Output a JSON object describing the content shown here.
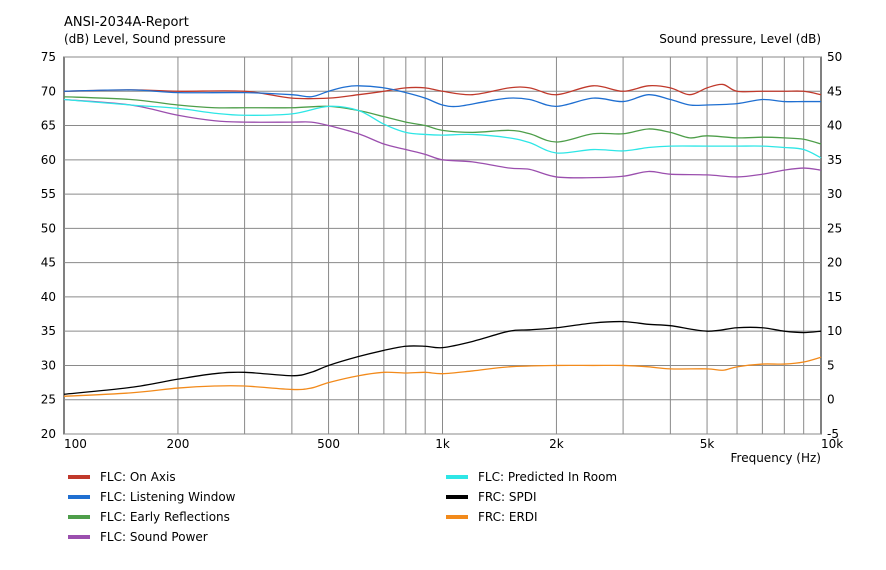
{
  "chart_data": {
    "type": "line",
    "title": "ANSI-2034A-Report",
    "left_axis_label": "(dB)  Level, Sound pressure",
    "right_axis_label": "Sound pressure, Level  (dB)",
    "xlabel": "Frequency  (Hz)",
    "x_scale": "log",
    "xlim": [
      100,
      10000
    ],
    "ylim_left": [
      20,
      75
    ],
    "ylim_right": [
      -5,
      50
    ],
    "grid": true,
    "x_tick_labels": [
      {
        "value": 100,
        "label": "100"
      },
      {
        "value": 200,
        "label": "200"
      },
      {
        "value": 500,
        "label": "500"
      },
      {
        "value": 1000,
        "label": "1k"
      },
      {
        "value": 2000,
        "label": "2k"
      },
      {
        "value": 5000,
        "label": "5k"
      },
      {
        "value": 10000,
        "label": "10k"
      }
    ],
    "y_left_ticks": [
      20,
      25,
      30,
      35,
      40,
      45,
      50,
      55,
      60,
      65,
      70,
      75
    ],
    "y_right_ticks": [
      -5,
      0,
      5,
      10,
      15,
      20,
      25,
      30,
      35,
      40,
      45,
      50
    ],
    "legend_position": "bottom",
    "series": [
      {
        "name": "FLC: On Axis",
        "color": "#c0392b",
        "axis": "left",
        "x": [
          100,
          150,
          200,
          300,
          400,
          500,
          600,
          700,
          800,
          900,
          1000,
          1200,
          1500,
          1700,
          2000,
          2500,
          3000,
          3500,
          4000,
          4500,
          5000,
          5500,
          6000,
          7000,
          8000,
          9000,
          10000
        ],
        "y": [
          70.0,
          70.2,
          70.0,
          70.0,
          69.0,
          69.0,
          69.5,
          70.0,
          70.5,
          70.5,
          70.0,
          69.5,
          70.5,
          70.5,
          69.5,
          70.8,
          70.0,
          70.8,
          70.5,
          69.5,
          70.5,
          71.0,
          70.0,
          70.0,
          70.0,
          70.0,
          69.5
        ]
      },
      {
        "name": "FLC: Listening Window",
        "color": "#1f6fd1",
        "axis": "left",
        "x": [
          100,
          150,
          200,
          300,
          400,
          450,
          500,
          550,
          600,
          700,
          800,
          900,
          1000,
          1100,
          1300,
          1500,
          1700,
          2000,
          2500,
          3000,
          3500,
          4000,
          4500,
          5000,
          6000,
          7000,
          8000,
          9000,
          10000
        ],
        "y": [
          70.0,
          70.2,
          69.8,
          69.8,
          69.5,
          69.2,
          70.0,
          70.6,
          70.8,
          70.5,
          69.8,
          69.0,
          68.0,
          67.8,
          68.5,
          69.0,
          68.8,
          67.8,
          69.0,
          68.5,
          69.5,
          68.8,
          68.0,
          68.0,
          68.2,
          68.8,
          68.5,
          68.5,
          68.5
        ]
      },
      {
        "name": "FLC: Early Reflections",
        "color": "#4e9e4a",
        "axis": "left",
        "x": [
          100,
          150,
          200,
          250,
          300,
          400,
          500,
          600,
          700,
          800,
          900,
          1000,
          1200,
          1500,
          1700,
          2000,
          2500,
          3000,
          3500,
          4000,
          4500,
          5000,
          6000,
          7000,
          8000,
          9000,
          10000
        ],
        "y": [
          69.2,
          68.8,
          68.0,
          67.6,
          67.6,
          67.6,
          67.8,
          67.2,
          66.3,
          65.5,
          65.0,
          64.3,
          64.0,
          64.3,
          63.8,
          62.6,
          63.8,
          63.8,
          64.5,
          64.0,
          63.2,
          63.5,
          63.2,
          63.3,
          63.2,
          63.0,
          62.3
        ]
      },
      {
        "name": "FLC: Sound Power",
        "color": "#9b4fae",
        "axis": "left",
        "x": [
          100,
          150,
          200,
          250,
          300,
          400,
          450,
          500,
          600,
          700,
          800,
          900,
          1000,
          1200,
          1500,
          1700,
          2000,
          2500,
          3000,
          3500,
          4000,
          5000,
          6000,
          7000,
          8000,
          9000,
          10000
        ],
        "y": [
          68.8,
          68.0,
          66.5,
          65.7,
          65.5,
          65.5,
          65.5,
          65.0,
          63.8,
          62.3,
          61.5,
          60.8,
          60.0,
          59.7,
          58.8,
          58.6,
          57.5,
          57.4,
          57.6,
          58.3,
          57.9,
          57.8,
          57.5,
          57.9,
          58.5,
          58.8,
          58.5
        ]
      },
      {
        "name": "FLC: Predicted In Room",
        "color": "#2ee6e6",
        "axis": "left",
        "x": [
          100,
          150,
          200,
          250,
          300,
          400,
          500,
          600,
          700,
          800,
          900,
          1000,
          1200,
          1500,
          1700,
          2000,
          2500,
          3000,
          3500,
          4000,
          5000,
          6000,
          7000,
          8000,
          9000,
          10000
        ],
        "y": [
          68.8,
          68.0,
          67.5,
          66.8,
          66.5,
          66.7,
          67.8,
          67.2,
          65.2,
          64.0,
          63.7,
          63.6,
          63.7,
          63.2,
          62.5,
          61.0,
          61.5,
          61.3,
          61.8,
          62.0,
          62.0,
          62.0,
          62.0,
          61.8,
          61.5,
          60.3
        ]
      },
      {
        "name": "FRC: SPDI",
        "color": "#000000",
        "axis": "right",
        "x": [
          100,
          150,
          200,
          250,
          300,
          400,
          450,
          500,
          600,
          700,
          800,
          900,
          1000,
          1200,
          1500,
          1700,
          2000,
          2500,
          3000,
          3500,
          4000,
          5000,
          6000,
          7000,
          8000,
          9000,
          10000
        ],
        "y": [
          0.8,
          1.8,
          3.0,
          3.8,
          4.0,
          3.5,
          4.0,
          5.0,
          6.3,
          7.2,
          7.8,
          7.8,
          7.6,
          8.5,
          10.0,
          10.2,
          10.5,
          11.2,
          11.4,
          11.0,
          10.8,
          10.0,
          10.5,
          10.5,
          10.0,
          9.8,
          10.0
        ]
      },
      {
        "name": "FRC: ERDI",
        "color": "#f28a1b",
        "axis": "right",
        "x": [
          100,
          150,
          200,
          250,
          300,
          400,
          450,
          500,
          600,
          700,
          800,
          900,
          1000,
          1200,
          1500,
          2000,
          2500,
          3000,
          3500,
          4000,
          5000,
          5500,
          6000,
          7000,
          8000,
          9000,
          10000
        ],
        "y": [
          0.5,
          1.0,
          1.7,
          2.0,
          2.0,
          1.5,
          1.7,
          2.5,
          3.5,
          4.0,
          3.9,
          4.0,
          3.8,
          4.2,
          4.8,
          5.0,
          5.0,
          5.0,
          4.8,
          4.5,
          4.5,
          4.3,
          4.8,
          5.2,
          5.2,
          5.5,
          6.2
        ]
      }
    ]
  }
}
